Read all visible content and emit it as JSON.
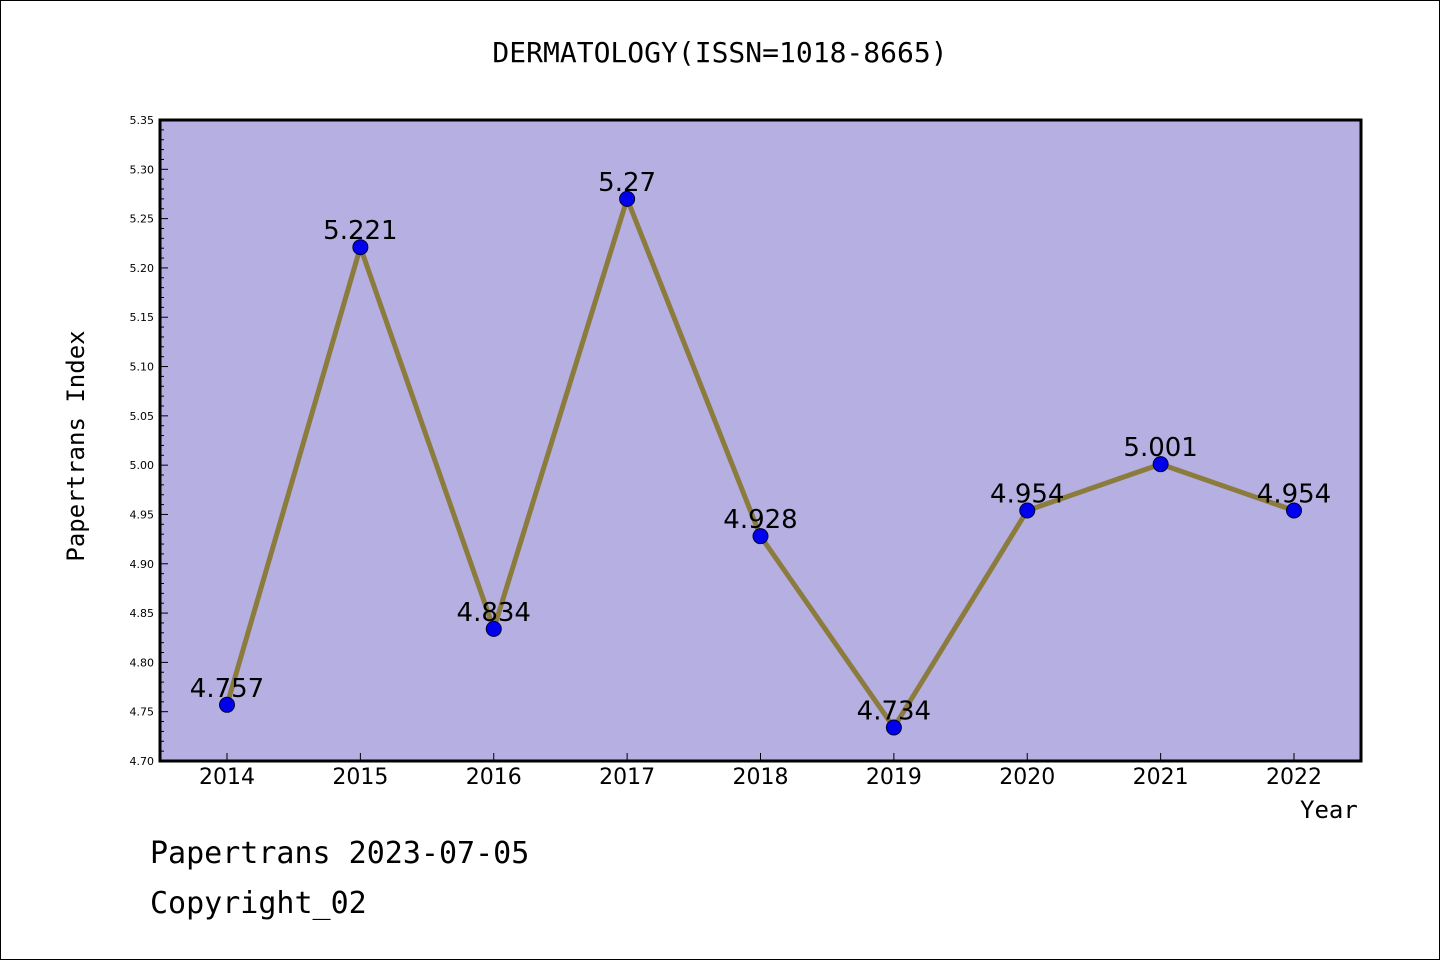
{
  "chart_data": {
    "type": "line",
    "title": "DERMATOLOGY(ISSN=1018-8665)",
    "xlabel": "Year",
    "ylabel": "Papertrans Index",
    "categories": [
      "2014",
      "2015",
      "2016",
      "2017",
      "2018",
      "2019",
      "2020",
      "2021",
      "2022"
    ],
    "series": [
      {
        "values": [
          4.757,
          5.221,
          4.834,
          5.27,
          4.928,
          4.734,
          4.954,
          5.001,
          4.954
        ],
        "labels": [
          "4.757",
          "5.221",
          "4.834",
          "5.27",
          "4.928",
          "4.734",
          "4.954",
          "5.001",
          "4.954"
        ]
      }
    ],
    "ylim": [
      4.7,
      5.35
    ],
    "yticks": [
      "4.70",
      "4.75",
      "4.80",
      "4.85",
      "4.90",
      "4.95",
      "5.00",
      "5.05",
      "5.10",
      "5.15",
      "5.20",
      "5.25",
      "5.30",
      "5.35"
    ],
    "grid": false,
    "colors": {
      "plot_background": "#b5afe2",
      "line": "#8b7b3d",
      "marker": "#0000ee"
    }
  },
  "footer": {
    "line1": "Papertrans 2023-07-05",
    "line2": "Copyright_02"
  }
}
